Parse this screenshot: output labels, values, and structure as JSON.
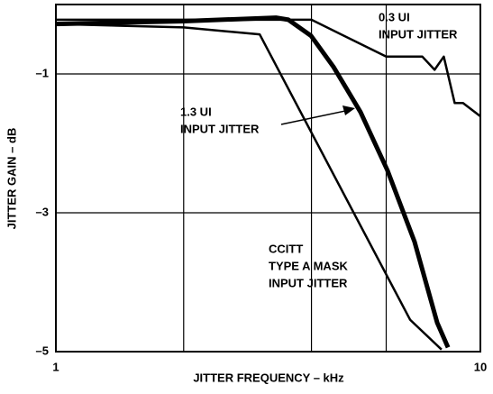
{
  "chart_data": {
    "type": "line",
    "xlabel": "JITTER FREQUENCY – kHz",
    "ylabel": "JITTER GAIN – dB",
    "xscale": "log",
    "xlim": [
      1,
      10
    ],
    "ylim": [
      -5,
      0
    ],
    "xticks": [
      1,
      10
    ],
    "xgrid": [
      2,
      4,
      6
    ],
    "yticks": [
      {
        "value": -1,
        "label": "–1"
      },
      {
        "value": -3,
        "label": "–3"
      },
      {
        "value": -5,
        "label": "–5"
      }
    ],
    "grid": true,
    "series": [
      {
        "name": "0.3 UI INPUT JITTER",
        "color": "#000000",
        "width": 2.5,
        "x": [
          1,
          4,
          6,
          7.3,
          7.8,
          8.2,
          8.7,
          9.1,
          10
        ],
        "values": [
          -0.22,
          -0.22,
          -0.75,
          -0.75,
          -0.94,
          -0.75,
          -1.42,
          -1.42,
          -1.61
        ]
      },
      {
        "name": "1.3 UI INPUT JITTER",
        "color": "#000000",
        "width": 5,
        "x": [
          1,
          2,
          3.3,
          3.53,
          3.99,
          4.51,
          5.22,
          6.04,
          7.0,
          7.91,
          8.39
        ],
        "values": [
          -0.28,
          -0.24,
          -0.19,
          -0.22,
          -0.45,
          -0.9,
          -1.55,
          -2.39,
          -3.42,
          -4.58,
          -4.94
        ]
      },
      {
        "name": "CCITT TYPE A MASK INPUT JITTER",
        "color": "#000000",
        "width": 2.5,
        "x": [
          1,
          2,
          3.02,
          6.83,
          8.1
        ],
        "values": [
          -0.28,
          -0.33,
          -0.43,
          -4.54,
          -4.97
        ]
      }
    ],
    "annotations": [
      {
        "lines": [
          "0.3 UI",
          "INPUT JITTER"
        ]
      },
      {
        "lines": [
          "1.3 UI",
          "INPUT JITTER"
        ]
      },
      {
        "lines": [
          "CCITT",
          "TYPE A MASK",
          "INPUT JITTER"
        ]
      }
    ]
  }
}
